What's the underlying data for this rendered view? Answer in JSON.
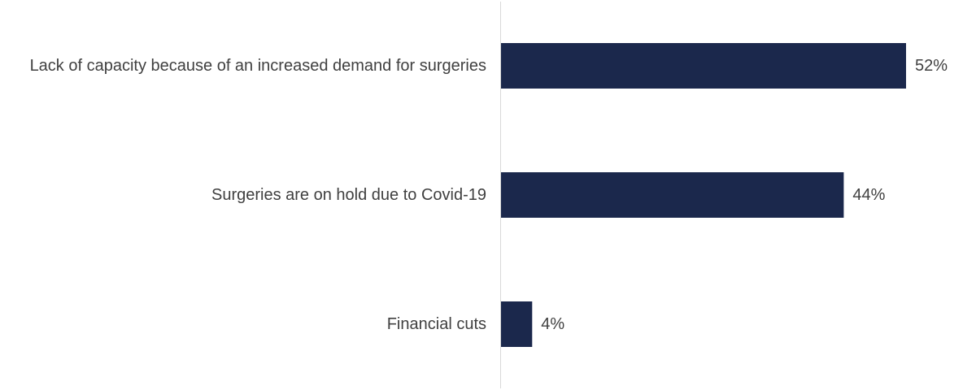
{
  "colors": {
    "bar": "#1b284c",
    "text": "#404040",
    "axis": "#d9d9d9"
  },
  "chart_data": {
    "type": "bar",
    "orientation": "horizontal",
    "categories": [
      "Lack of capacity because of an increased demand for surgeries",
      "Surgeries are on hold due to Covid-19",
      "Financial cuts"
    ],
    "values": [
      52,
      44,
      4
    ],
    "value_labels": [
      "52%",
      "44%",
      "4%"
    ],
    "unit": "%",
    "title": "",
    "xlabel": "",
    "ylabel": "",
    "xlim": [
      0,
      52
    ],
    "grid": false,
    "legend": "none"
  }
}
